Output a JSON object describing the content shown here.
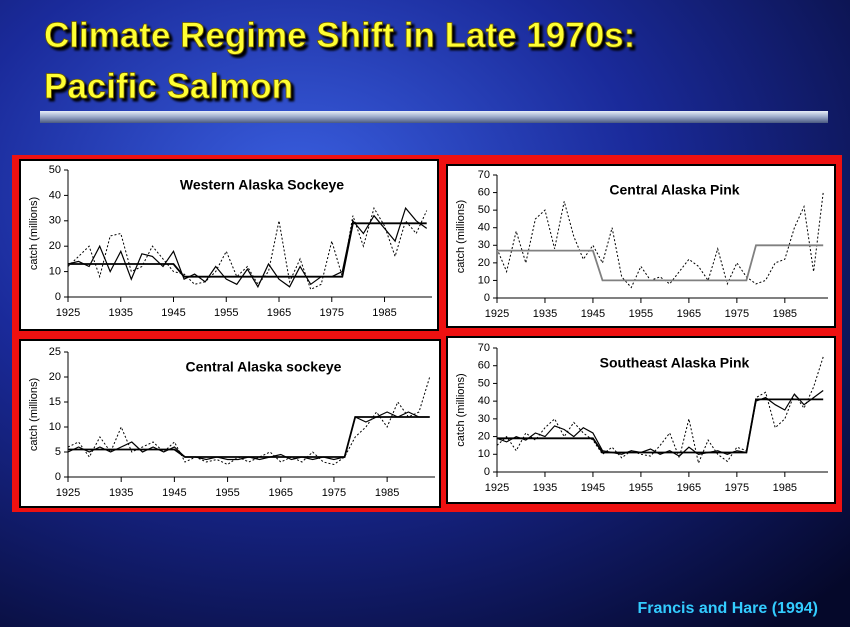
{
  "slide": {
    "title": [
      "Climate Regime Shift in Late 1970s:",
      "Pacific Salmon"
    ],
    "source": "Francis and Hare (1994)"
  },
  "chart_data": [
    {
      "type": "line",
      "title": "Western Alaska Sockeye",
      "y_label": "catch (millions)",
      "x": [
        1925,
        1927,
        1929,
        1931,
        1933,
        1935,
        1937,
        1939,
        1941,
        1943,
        1945,
        1947,
        1949,
        1951,
        1953,
        1955,
        1957,
        1959,
        1961,
        1963,
        1965,
        1967,
        1969,
        1971,
        1973,
        1975,
        1977,
        1979,
        1981,
        1983,
        1985,
        1987,
        1989,
        1991,
        1993
      ],
      "series": [
        {
          "color": "#000000",
          "style": "dotted",
          "values": [
            12,
            16,
            20,
            8,
            24,
            25,
            10,
            12,
            20,
            15,
            10,
            9,
            5,
            6,
            10,
            18,
            8,
            12,
            5,
            10,
            30,
            6,
            15,
            3,
            5,
            22,
            8,
            32,
            20,
            35,
            28,
            16,
            30,
            25,
            34
          ]
        },
        {
          "color": "#000000",
          "style": "solid",
          "values": [
            13,
            14,
            12,
            20,
            10,
            18,
            7,
            17,
            16,
            12,
            18,
            7,
            9,
            6,
            12,
            7,
            5,
            11,
            4,
            13,
            7,
            4,
            12,
            5,
            8,
            8,
            10,
            30,
            25,
            32,
            27,
            22,
            35,
            30,
            27
          ]
        },
        {
          "color": "#000000",
          "style": "step",
          "values": [
            13,
            13,
            13,
            13,
            13,
            13,
            13,
            13,
            13,
            13,
            13,
            8,
            8,
            8,
            8,
            8,
            8,
            8,
            8,
            8,
            8,
            8,
            8,
            8,
            8,
            8,
            8,
            29,
            29,
            29,
            29,
            29,
            29,
            29,
            29
          ]
        }
      ],
      "xlim": [
        1925,
        1994
      ],
      "ylim": [
        0,
        50
      ],
      "xticks": [
        1925,
        1935,
        1945,
        1955,
        1965,
        1975,
        1985
      ],
      "yticks": [
        0,
        10,
        20,
        30,
        40,
        50
      ]
    },
    {
      "type": "line",
      "title": "Central Alaska Pink",
      "y_label": "catch (millions)",
      "x": [
        1925,
        1927,
        1929,
        1931,
        1933,
        1935,
        1937,
        1939,
        1941,
        1943,
        1945,
        1947,
        1949,
        1951,
        1953,
        1955,
        1957,
        1959,
        1961,
        1963,
        1965,
        1967,
        1969,
        1971,
        1973,
        1975,
        1977,
        1979,
        1981,
        1983,
        1985,
        1987,
        1989,
        1991,
        1993
      ],
      "series": [
        {
          "color": "#000000",
          "style": "dotted",
          "values": [
            28,
            15,
            38,
            20,
            45,
            50,
            28,
            55,
            35,
            22,
            30,
            20,
            40,
            12,
            6,
            18,
            10,
            12,
            8,
            15,
            22,
            18,
            10,
            28,
            8,
            20,
            12,
            8,
            10,
            20,
            22,
            40,
            52,
            15,
            60
          ]
        },
        {
          "color": "#808080",
          "style": "step",
          "values": [
            27,
            27,
            27,
            27,
            27,
            27,
            27,
            27,
            27,
            27,
            27,
            10,
            10,
            10,
            10,
            10,
            10,
            10,
            10,
            10,
            10,
            10,
            10,
            10,
            10,
            10,
            10,
            30,
            30,
            30,
            30,
            30,
            30,
            30,
            30
          ]
        }
      ],
      "xlim": [
        1925,
        1994
      ],
      "ylim": [
        0,
        70
      ],
      "xticks": [
        1925,
        1935,
        1945,
        1955,
        1965,
        1975,
        1985
      ],
      "yticks": [
        0,
        10,
        20,
        30,
        40,
        50,
        60,
        70
      ]
    },
    {
      "type": "line",
      "title": "Central Alaska sockeye",
      "y_label": "catch (millions)",
      "x": [
        1925,
        1927,
        1929,
        1931,
        1933,
        1935,
        1937,
        1939,
        1941,
        1943,
        1945,
        1947,
        1949,
        1951,
        1953,
        1955,
        1957,
        1959,
        1961,
        1963,
        1965,
        1967,
        1969,
        1971,
        1973,
        1975,
        1977,
        1979,
        1981,
        1983,
        1985,
        1987,
        1989,
        1991,
        1993
      ],
      "series": [
        {
          "color": "#000000",
          "style": "dotted",
          "values": [
            6,
            7,
            4,
            8,
            5,
            10,
            5,
            6,
            7,
            5,
            7,
            3,
            4,
            3,
            3.5,
            2.5,
            4,
            3,
            4,
            5,
            3,
            4,
            3,
            5,
            3,
            2.5,
            4,
            8,
            10,
            13,
            10,
            15,
            12,
            13,
            20
          ]
        },
        {
          "color": "#000000",
          "style": "solid",
          "values": [
            5,
            6,
            5,
            6,
            5,
            6,
            7,
            5,
            6,
            5,
            6,
            4,
            4,
            3.5,
            4,
            3.5,
            3.5,
            4,
            3.5,
            4,
            4.5,
            3.5,
            4,
            3.5,
            4,
            3.5,
            4,
            12,
            11,
            12,
            13,
            12,
            13,
            12,
            12
          ]
        },
        {
          "color": "#000000",
          "style": "step",
          "values": [
            5.5,
            5.5,
            5.5,
            5.5,
            5.5,
            5.5,
            5.5,
            5.5,
            5.5,
            5.5,
            5.5,
            4,
            4,
            4,
            4,
            4,
            4,
            4,
            4,
            4,
            4,
            4,
            4,
            4,
            4,
            4,
            4,
            12,
            12,
            12,
            12,
            12,
            12,
            12,
            12
          ]
        }
      ],
      "xlim": [
        1925,
        1994
      ],
      "ylim": [
        0,
        25
      ],
      "xticks": [
        1925,
        1935,
        1945,
        1955,
        1965,
        1975,
        1985
      ],
      "yticks": [
        0,
        5,
        10,
        15,
        20,
        25
      ]
    },
    {
      "type": "line",
      "title": "Southeast Alaska Pink",
      "y_label": "catch (millions)",
      "x": [
        1925,
        1927,
        1929,
        1931,
        1933,
        1935,
        1937,
        1939,
        1941,
        1943,
        1945,
        1947,
        1949,
        1951,
        1953,
        1955,
        1957,
        1959,
        1961,
        1963,
        1965,
        1967,
        1969,
        1971,
        1973,
        1975,
        1977,
        1979,
        1981,
        1983,
        1985,
        1987,
        1989,
        1991,
        1993
      ],
      "series": [
        {
          "color": "#000000",
          "style": "dotted",
          "values": [
            15,
            20,
            12,
            22,
            18,
            25,
            30,
            20,
            28,
            22,
            18,
            10,
            14,
            8,
            12,
            10,
            9,
            15,
            22,
            8,
            30,
            5,
            18,
            10,
            6,
            14,
            12,
            42,
            45,
            25,
            30,
            44,
            36,
            48,
            65
          ]
        },
        {
          "color": "#000000",
          "style": "solid",
          "values": [
            19,
            17,
            20,
            18,
            22,
            20,
            26,
            24,
            20,
            25,
            22,
            12,
            11,
            10,
            12,
            11,
            13,
            10,
            12,
            9,
            14,
            10,
            11,
            12,
            10,
            12,
            11,
            40,
            42,
            38,
            35,
            44,
            38,
            42,
            46
          ]
        },
        {
          "color": "#000000",
          "style": "step",
          "values": [
            19,
            19,
            19,
            19,
            19,
            19,
            19,
            19,
            19,
            19,
            19,
            11,
            11,
            11,
            11,
            11,
            11,
            11,
            11,
            11,
            11,
            11,
            11,
            11,
            11,
            11,
            11,
            41,
            41,
            41,
            41,
            41,
            41,
            41,
            41
          ]
        }
      ],
      "xlim": [
        1925,
        1994
      ],
      "ylim": [
        0,
        70
      ],
      "xticks": [
        1925,
        1935,
        1945,
        1955,
        1965,
        1975,
        1985
      ],
      "yticks": [
        0,
        10,
        20,
        30,
        40,
        50,
        60,
        70
      ]
    }
  ]
}
